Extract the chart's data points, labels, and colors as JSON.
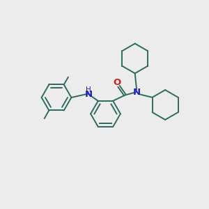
{
  "bg_color": "#ececec",
  "line_color": "#2d6b5e",
  "n_color": "#2222bb",
  "o_color": "#cc2222",
  "line_width": 1.4,
  "font_size_atom": 8.5,
  "xlim": [
    0,
    10
  ],
  "ylim": [
    0,
    10
  ]
}
